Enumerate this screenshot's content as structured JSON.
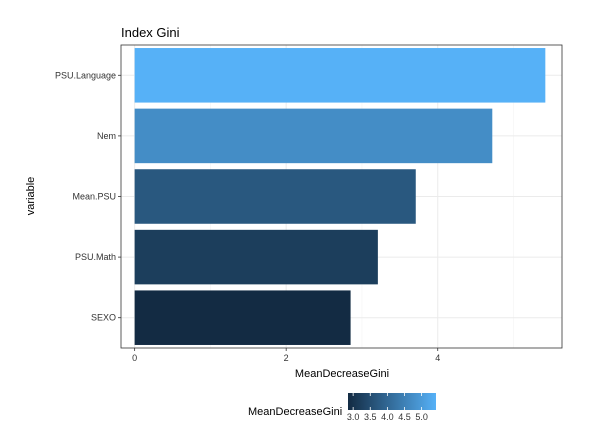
{
  "chart_data": {
    "type": "bar",
    "orientation": "horizontal",
    "title": "Index Gini",
    "xlabel": "MeanDecreaseGini",
    "ylabel": "variable",
    "categories": [
      "PSU.Language",
      "Nem",
      "Mean.PSU",
      "PSU.Math",
      "SEXO"
    ],
    "values": [
      5.42,
      4.72,
      3.71,
      3.21,
      2.85
    ],
    "xlim": [
      -0.18,
      5.64
    ],
    "xticks": [
      0,
      2,
      4
    ],
    "grid": true,
    "legend": {
      "title": "MeanDecreaseGini",
      "placement": "bottom",
      "type": "colorbar",
      "range": [
        2.85,
        5.42
      ],
      "ticks": [
        3.0,
        3.5,
        4.0,
        4.5,
        5.0
      ],
      "tick_labels": [
        "3.0",
        "3.5",
        "4.0",
        "4.5",
        "5.0"
      ],
      "low_color": "#132B43",
      "high_color": "#56B1F7"
    }
  }
}
